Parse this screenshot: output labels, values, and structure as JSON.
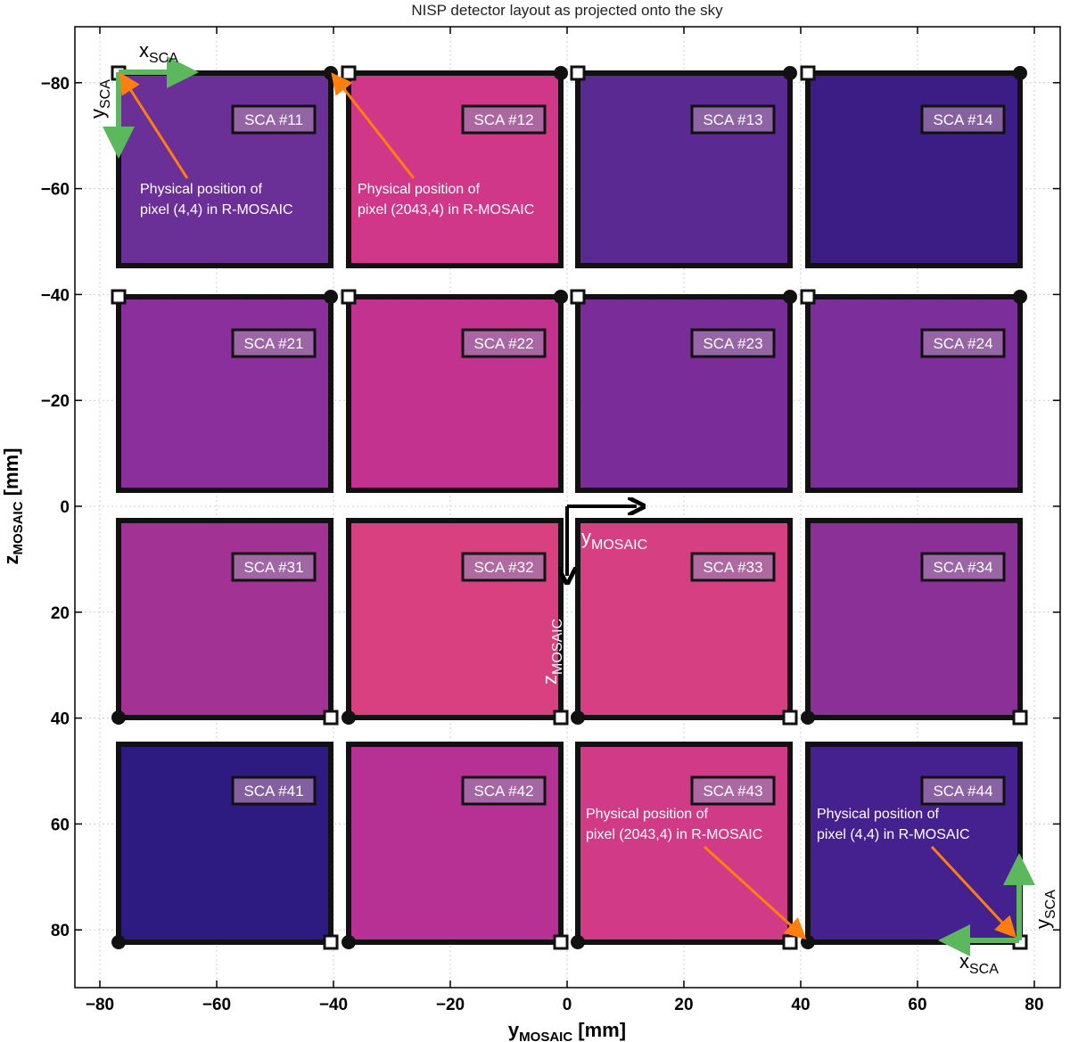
{
  "title": "NISP detector layout as projected onto the sky",
  "xaxis": {
    "label": "y",
    "label_sub": "MOSAIC",
    "label_unit": " [mm]",
    "range": [
      -90,
      90
    ],
    "ticks": [
      -80,
      -60,
      -40,
      -20,
      0,
      20,
      40,
      60,
      80
    ],
    "tick_labels": [
      "−80",
      "−60",
      "−40",
      "−20",
      "0",
      "20",
      "40",
      "60",
      "80"
    ]
  },
  "yaxis": {
    "label": "z",
    "label_sub": "MOSAIC",
    "label_unit": " [mm]",
    "range": [
      -90,
      90
    ],
    "inverted": true,
    "ticks": [
      -80,
      -60,
      -40,
      -20,
      0,
      20,
      40,
      60,
      80
    ],
    "tick_labels": [
      "−80",
      "−60",
      "−40",
      "−20",
      "0",
      "20",
      "40",
      "60",
      "80"
    ]
  },
  "grid": true,
  "detectors": [
    {
      "label": "SCA #11",
      "col": 1,
      "row": 1,
      "color": "#6b2f98"
    },
    {
      "label": "SCA #12",
      "col": 2,
      "row": 1,
      "color": "#d03788"
    },
    {
      "label": "SCA #13",
      "col": 3,
      "row": 1,
      "color": "#5a2a92"
    },
    {
      "label": "SCA #14",
      "col": 4,
      "row": 1,
      "color": "#3b1d85"
    },
    {
      "label": "SCA #21",
      "col": 1,
      "row": 2,
      "color": "#8a2f9c"
    },
    {
      "label": "SCA #22",
      "col": 2,
      "row": 2,
      "color": "#c4328f"
    },
    {
      "label": "SCA #23",
      "col": 3,
      "row": 2,
      "color": "#7a2c98"
    },
    {
      "label": "SCA #24",
      "col": 4,
      "row": 2,
      "color": "#7c2e9a"
    },
    {
      "label": "SCA #31",
      "col": 1,
      "row": 3,
      "color": "#a23394"
    },
    {
      "label": "SCA #32",
      "col": 2,
      "row": 3,
      "color": "#d94080"
    },
    {
      "label": "SCA #33",
      "col": 3,
      "row": 3,
      "color": "#d63f82"
    },
    {
      "label": "SCA #34",
      "col": 4,
      "row": 3,
      "color": "#8b3097"
    },
    {
      "label": "SCA #41",
      "col": 1,
      "row": 4,
      "color": "#2e1b82"
    },
    {
      "label": "SCA #42",
      "col": 2,
      "row": 4,
      "color": "#b63193"
    },
    {
      "label": "SCA #43",
      "col": 3,
      "row": 4,
      "color": "#d03a86"
    },
    {
      "label": "SCA #44",
      "col": 4,
      "row": 4,
      "color": "#452190"
    }
  ],
  "annotations": [
    {
      "line1": "Physical position of",
      "line2": "pixel (4,4) in R-MOSAIC"
    },
    {
      "line1": "Physical position of",
      "line2": "pixel (2043,4) in R-MOSAIC"
    },
    {
      "line1": "Physical position of",
      "line2": "pixel (2043,4) in R-MOSAIC"
    },
    {
      "line1": "Physical position of",
      "line2": "pixel (4,4) in R-MOSAIC"
    }
  ],
  "frames": {
    "sca_x": "x",
    "sca_y": "y",
    "sca_sub": "SCA",
    "mosaic_y": "y",
    "mosaic_z": "z",
    "mosaic_sub": "MOSAIC"
  },
  "colors": {
    "sca_arrow": "#5cb85c",
    "pointer_arrow": "#ff7f0e",
    "frame_border": "#111111",
    "label_box_bg": "rgba(160,120,170,0.75)"
  }
}
